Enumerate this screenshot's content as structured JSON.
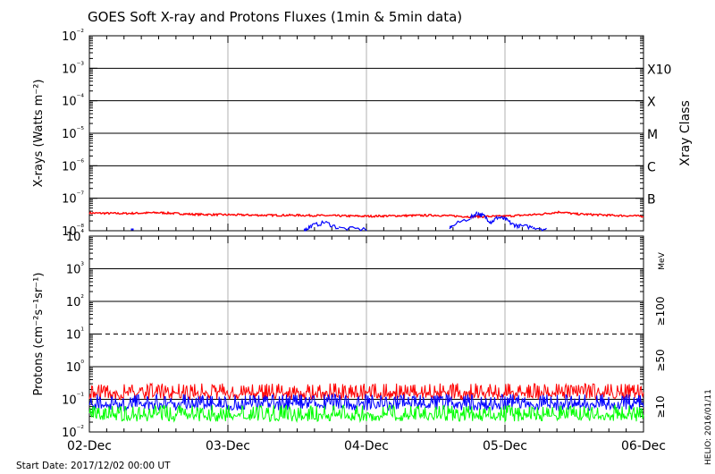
{
  "title": "GOES Soft X-ray and Protons Fluxes   (1min & 5min data)",
  "footer": {
    "start_date": "Start Date: 2017/12/02 00:00 UT",
    "credit": "HELIO: 2016/01/11"
  },
  "colors": {
    "red": "#ff0000",
    "blue": "#0000ff",
    "green": "#00ff00",
    "grid": "#000000",
    "day_lines": "#b0b0b0"
  },
  "chart_data": [
    {
      "type": "line",
      "title": "",
      "ylabel": "X-rays (Watts m⁻²)",
      "yscale": "log",
      "ylim": [
        1e-08,
        0.01
      ],
      "ytick_labels": [
        "10⁻⁸",
        "10⁻⁷",
        "10⁻⁶",
        "10⁻⁵",
        "10⁻⁴",
        "10⁻³",
        "10⁻²"
      ],
      "right_axis_title": "Xray Class",
      "class_labels": [
        {
          "label": "B",
          "value": 1e-07
        },
        {
          "label": "C",
          "value": 1e-06
        },
        {
          "label": "M",
          "value": 1e-05
        },
        {
          "label": "X",
          "value": 0.0001
        },
        {
          "label": "X10",
          "value": 0.001
        }
      ],
      "x_days": [
        "02-Dec",
        "03-Dec",
        "04-Dec",
        "05-Dec",
        "06-Dec"
      ],
      "series": [
        {
          "color": "red",
          "x": [
            0,
            0.25,
            0.5,
            0.75,
            1.0,
            1.25,
            1.5,
            1.75,
            2.0,
            2.25,
            2.5,
            2.75,
            3.0,
            3.25,
            3.4,
            3.5,
            3.75,
            4.0
          ],
          "y": [
            3.5e-08,
            3.4e-08,
            3.6e-08,
            3.2e-08,
            3.1e-08,
            3e-08,
            3e-08,
            2.9e-08,
            2.8e-08,
            2.9e-08,
            3e-08,
            2.7e-08,
            2.8e-08,
            3.2e-08,
            3.8e-08,
            3.3e-08,
            3e-08,
            2.8e-08
          ]
        },
        {
          "color": "blue",
          "x": [
            0.3,
            1.55,
            1.6,
            1.7,
            1.8,
            2.0,
            2.6,
            2.75,
            2.8,
            2.85,
            2.9,
            2.95,
            3.0,
            3.05,
            3.1,
            3.2,
            3.3
          ],
          "y": [
            1e-08,
            1e-08,
            1.4e-08,
            1.8e-08,
            1.2e-08,
            1.1e-08,
            1.2e-08,
            2.5e-08,
            3.5e-08,
            2.8e-08,
            1.8e-08,
            2.6e-08,
            2.3e-08,
            1.6e-08,
            1.4e-08,
            1.3e-08,
            1.1e-08
          ]
        }
      ]
    },
    {
      "type": "line",
      "title": "",
      "ylabel": "Protons (cm⁻²s⁻¹sr⁻¹)",
      "yscale": "log",
      "ylim": [
        0.01,
        10000
      ],
      "ytick_labels": [
        "10⁻²",
        "10⁻¹",
        "10⁰",
        "10¹",
        "10²",
        "10³",
        "10⁴"
      ],
      "threshold": {
        "value": 10,
        "style": "dashed"
      },
      "x_days": [
        "02-Dec",
        "03-Dec",
        "04-Dec",
        "05-Dec",
        "06-Dec"
      ],
      "energy_unit": "MeV",
      "series": [
        {
          "name": "≥10",
          "color": "red",
          "x": [
            0,
            4
          ],
          "y": [
            0.14,
            0.14
          ]
        },
        {
          "name": "≥50",
          "color": "blue",
          "x": [
            0,
            4
          ],
          "y": [
            0.065,
            0.065
          ]
        },
        {
          "name": "≥100",
          "color": "green",
          "x": [
            0,
            4
          ],
          "y": [
            0.03,
            0.03
          ]
        }
      ]
    }
  ]
}
